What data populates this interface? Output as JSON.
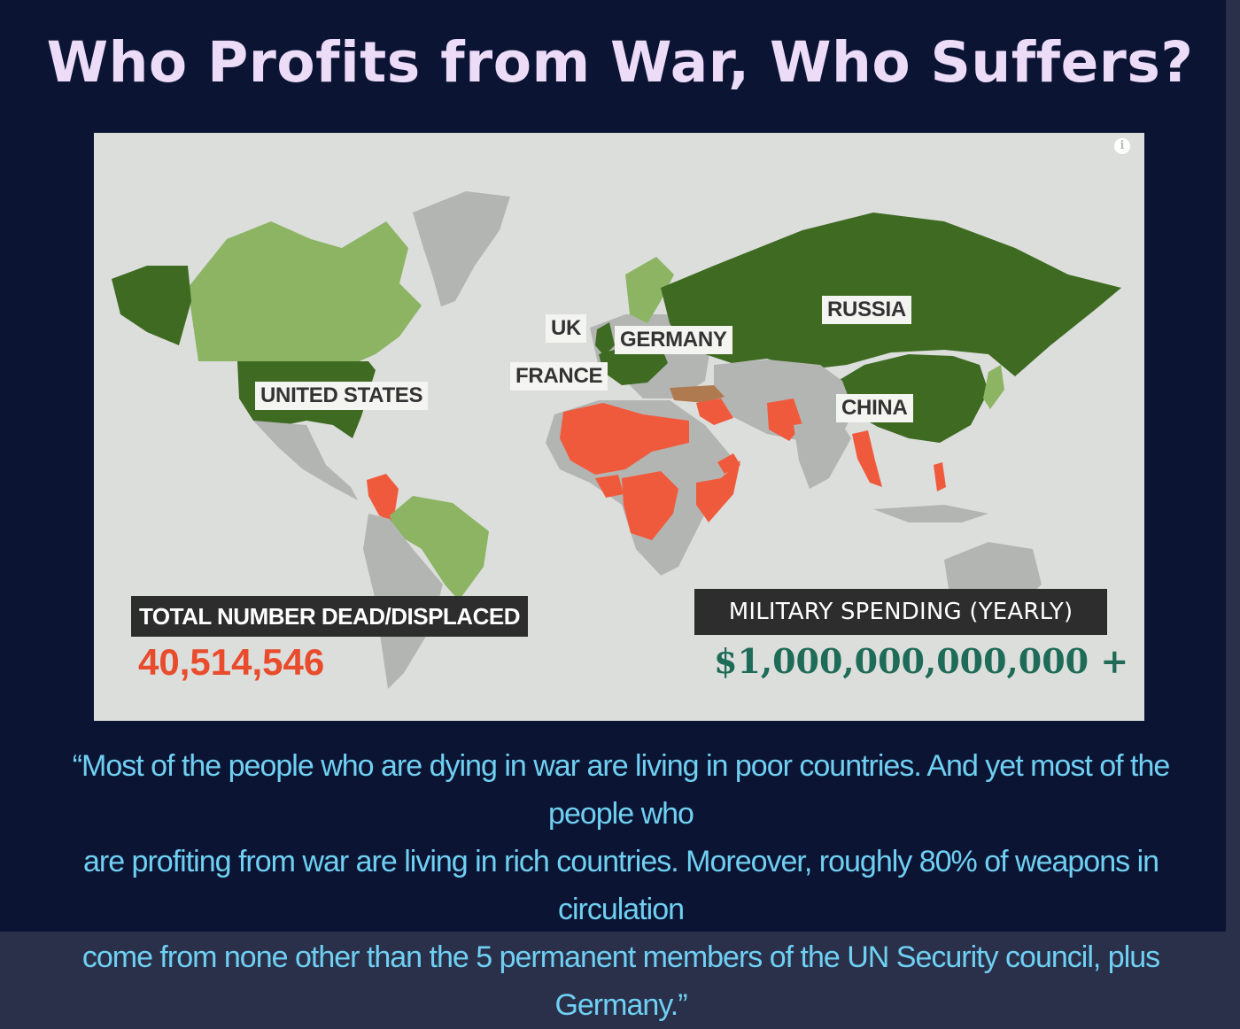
{
  "title": "Who Profits from War, Who Suffers?",
  "map": {
    "info_icon": "i",
    "country_labels": {
      "us": "UNITED STATES",
      "uk": "UK",
      "germany": "GERMANY",
      "france": "FRANCE",
      "russia": "RUSSIA",
      "china": "CHINA"
    },
    "dead_displaced_label": "TOTAL NUMBER DEAD/DISPLACED",
    "dead_displaced_value": "40,514,546",
    "military_spending_label": "MILITARY SPENDING (YEARLY)",
    "military_spending_value": "$1,000,000,000,000 +",
    "colors": {
      "background": "#dcdedc",
      "land_neutral": "#b3b5b3",
      "profiteer_dark": "#3e6a22",
      "profiteer_light": "#8cb463",
      "suffering": "#f05a3c",
      "turkey": "#b07a50"
    }
  },
  "quote": {
    "line1": "“Most of the people who are dying in war are living in poor countries. And yet most of the people who",
    "line2": "are profiting from war are living in rich countries. Moreover, roughly 80% of weapons in circulation",
    "line3": "come from none other than the 5 permanent members of the UN Security council, plus Germany.”"
  }
}
